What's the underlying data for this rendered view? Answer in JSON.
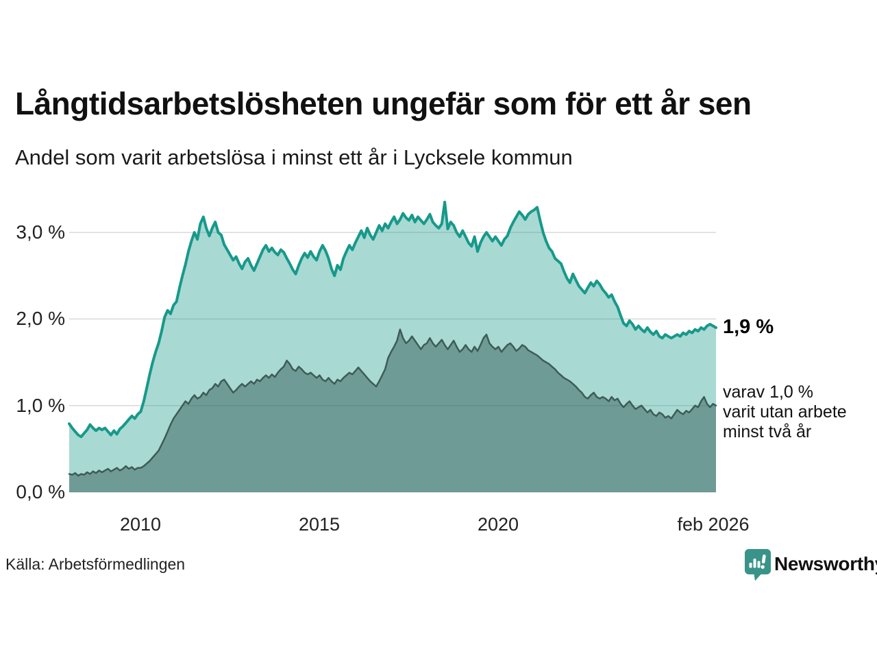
{
  "header": {
    "title": "Långtidsarbetslösheten ungefär som för ett år sen",
    "subtitle": "Andel som varit arbetslösa i minst ett år i Lycksele kommun"
  },
  "axes": {
    "y_ticks": [
      "3,0 %",
      "2,0 %",
      "1,0 %",
      "0,0 %"
    ],
    "x_ticks": [
      "2010",
      "2015",
      "2020",
      "feb 2026"
    ]
  },
  "annotations": {
    "end_value_label": "1,9 %",
    "secondary_line1": "varav 1,0 %",
    "secondary_line2": "varit utan arbete",
    "secondary_line3": "minst två år"
  },
  "footer": {
    "source": "Källa: Arbetsförmedlingen",
    "brand_name": "Newsworthy",
    "brand_color": "#33908a"
  },
  "chart_data": {
    "type": "area",
    "title": "Långtidsarbetslösheten ungefär som för ett år sen",
    "subtitle": "Andel som varit arbetslösa i minst ett år i Lycksele kommun",
    "y_unit": "%",
    "ylim": [
      0,
      3.5
    ],
    "y_gridlines": [
      0,
      1,
      2,
      3
    ],
    "grid_color": "#d9d9de",
    "x_start_year": 2008.0,
    "x_end_label": "feb 2026",
    "x_step_months": 1,
    "x_tick_years": [
      2010,
      2015,
      2020,
      2026.083
    ],
    "legend_position": "right-edge-labels",
    "series": [
      {
        "name": "Andel som varit arbetslösa i minst ett år",
        "end_value": 1.9,
        "end_label": "1,9 %",
        "line_color": "#17998a",
        "fill_color": "rgba(26,154,139,0.38)",
        "line_width": 4,
        "values": [
          0.79,
          0.74,
          0.7,
          0.66,
          0.64,
          0.68,
          0.72,
          0.78,
          0.74,
          0.71,
          0.74,
          0.72,
          0.74,
          0.7,
          0.66,
          0.71,
          0.67,
          0.73,
          0.76,
          0.8,
          0.84,
          0.88,
          0.85,
          0.9,
          0.93,
          1.05,
          1.2,
          1.36,
          1.5,
          1.62,
          1.72,
          1.86,
          2.02,
          2.1,
          2.06,
          2.16,
          2.2,
          2.36,
          2.5,
          2.63,
          2.78,
          2.9,
          3.0,
          2.92,
          3.1,
          3.18,
          3.05,
          2.96,
          3.05,
          3.12,
          3.0,
          2.97,
          2.86,
          2.8,
          2.74,
          2.68,
          2.72,
          2.64,
          2.58,
          2.66,
          2.7,
          2.62,
          2.56,
          2.64,
          2.72,
          2.8,
          2.85,
          2.78,
          2.82,
          2.77,
          2.74,
          2.8,
          2.77,
          2.7,
          2.64,
          2.57,
          2.52,
          2.62,
          2.7,
          2.76,
          2.71,
          2.78,
          2.72,
          2.68,
          2.78,
          2.85,
          2.79,
          2.7,
          2.58,
          2.5,
          2.62,
          2.57,
          2.7,
          2.78,
          2.85,
          2.8,
          2.88,
          2.95,
          3.02,
          2.94,
          3.05,
          2.97,
          2.92,
          3.0,
          3.08,
          3.02,
          3.1,
          3.05,
          3.12,
          3.18,
          3.1,
          3.15,
          3.22,
          3.17,
          3.14,
          3.2,
          3.12,
          3.18,
          3.14,
          3.1,
          3.15,
          3.21,
          3.12,
          3.08,
          3.05,
          3.1,
          3.35,
          3.04,
          3.12,
          3.08,
          3.0,
          2.95,
          3.02,
          2.95,
          2.88,
          2.84,
          2.95,
          2.78,
          2.88,
          2.95,
          3.0,
          2.95,
          2.9,
          2.95,
          2.9,
          2.85,
          2.92,
          2.96,
          3.05,
          3.12,
          3.18,
          3.24,
          3.2,
          3.15,
          3.21,
          3.24,
          3.26,
          3.29,
          3.14,
          3.0,
          2.9,
          2.82,
          2.78,
          2.7,
          2.67,
          2.64,
          2.55,
          2.47,
          2.42,
          2.52,
          2.45,
          2.38,
          2.34,
          2.3,
          2.36,
          2.42,
          2.38,
          2.44,
          2.4,
          2.34,
          2.3,
          2.25,
          2.28,
          2.2,
          2.14,
          2.04,
          1.95,
          1.92,
          1.98,
          1.94,
          1.88,
          1.92,
          1.88,
          1.85,
          1.9,
          1.85,
          1.82,
          1.86,
          1.8,
          1.78,
          1.82,
          1.8,
          1.78,
          1.8,
          1.82,
          1.8,
          1.84,
          1.82,
          1.86,
          1.84,
          1.88,
          1.86,
          1.9,
          1.88,
          1.92,
          1.94,
          1.92,
          1.9
        ]
      },
      {
        "name": "varav varit utan arbete minst två år",
        "end_value": 1.0,
        "end_label": "varav 1,0 % varit utan arbete minst två år",
        "line_color": "#3e5b56",
        "fill_color": "rgba(52,94,87,0.5)",
        "line_width": 2.5,
        "values": [
          0.21,
          0.2,
          0.22,
          0.19,
          0.21,
          0.2,
          0.23,
          0.21,
          0.24,
          0.22,
          0.25,
          0.23,
          0.25,
          0.27,
          0.24,
          0.26,
          0.28,
          0.25,
          0.27,
          0.3,
          0.27,
          0.29,
          0.26,
          0.28,
          0.28,
          0.3,
          0.33,
          0.36,
          0.4,
          0.44,
          0.48,
          0.55,
          0.62,
          0.7,
          0.78,
          0.85,
          0.9,
          0.95,
          1.0,
          1.05,
          1.02,
          1.08,
          1.12,
          1.08,
          1.1,
          1.15,
          1.12,
          1.18,
          1.2,
          1.25,
          1.22,
          1.28,
          1.3,
          1.25,
          1.2,
          1.15,
          1.18,
          1.22,
          1.25,
          1.22,
          1.25,
          1.28,
          1.25,
          1.3,
          1.28,
          1.32,
          1.35,
          1.32,
          1.36,
          1.33,
          1.38,
          1.42,
          1.45,
          1.52,
          1.48,
          1.42,
          1.4,
          1.45,
          1.42,
          1.38,
          1.36,
          1.38,
          1.35,
          1.32,
          1.35,
          1.3,
          1.28,
          1.32,
          1.28,
          1.25,
          1.3,
          1.28,
          1.32,
          1.35,
          1.38,
          1.36,
          1.4,
          1.44,
          1.4,
          1.36,
          1.32,
          1.28,
          1.25,
          1.22,
          1.28,
          1.35,
          1.42,
          1.55,
          1.62,
          1.68,
          1.75,
          1.88,
          1.78,
          1.72,
          1.75,
          1.8,
          1.75,
          1.7,
          1.65,
          1.7,
          1.72,
          1.78,
          1.72,
          1.68,
          1.72,
          1.76,
          1.7,
          1.65,
          1.7,
          1.75,
          1.68,
          1.62,
          1.65,
          1.7,
          1.65,
          1.62,
          1.68,
          1.63,
          1.7,
          1.78,
          1.82,
          1.72,
          1.68,
          1.65,
          1.68,
          1.62,
          1.66,
          1.7,
          1.72,
          1.68,
          1.63,
          1.66,
          1.7,
          1.68,
          1.64,
          1.62,
          1.6,
          1.58,
          1.55,
          1.52,
          1.5,
          1.48,
          1.45,
          1.42,
          1.38,
          1.35,
          1.32,
          1.3,
          1.28,
          1.25,
          1.22,
          1.18,
          1.15,
          1.1,
          1.08,
          1.12,
          1.15,
          1.1,
          1.08,
          1.1,
          1.08,
          1.05,
          1.1,
          1.06,
          1.08,
          1.02,
          0.98,
          1.02,
          1.05,
          1.0,
          0.96,
          0.98,
          1.0,
          0.96,
          0.92,
          0.95,
          0.9,
          0.88,
          0.92,
          0.9,
          0.86,
          0.88,
          0.85,
          0.9,
          0.95,
          0.92,
          0.9,
          0.94,
          0.92,
          0.96,
          1.0,
          0.98,
          1.05,
          1.1,
          1.02,
          0.98,
          1.02,
          1.0
        ]
      }
    ]
  }
}
